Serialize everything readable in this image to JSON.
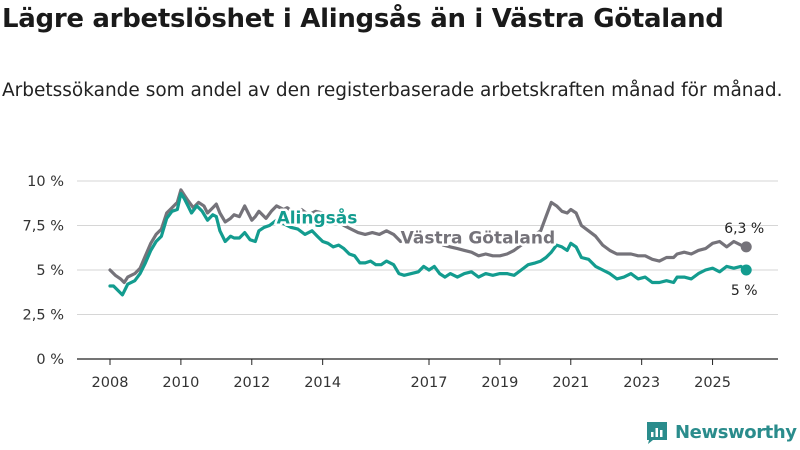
{
  "title": "Lägre arbetslöshet i Alingsås än i Västra Götaland",
  "subtitle": "Arbetssökande som andel av den registerbaserade arbetskraften månad för månad.",
  "brand": {
    "name": "Newsworthy",
    "icon": "bar-chart-logo-icon"
  },
  "colors": {
    "alingsas": "#139c8f",
    "vastra": "#75737a",
    "grid": "#d6d6d6",
    "axis": "#222222"
  },
  "chart_data": {
    "type": "line",
    "title": "Lägre arbetslöshet i Alingsås än i Västra Götaland",
    "xlabel": "",
    "ylabel": "",
    "xlim": [
      2008,
      2026
    ],
    "ylim": [
      0,
      10
    ],
    "grid": true,
    "y_ticks": [
      {
        "value": 0,
        "label": "0 %"
      },
      {
        "value": 2.5,
        "label": "2,5 %"
      },
      {
        "value": 5,
        "label": "5 %"
      },
      {
        "value": 7.5,
        "label": "7,5 %"
      },
      {
        "value": 10,
        "label": "10 %"
      }
    ],
    "x_ticks": [
      {
        "value": 2008,
        "label": "2008"
      },
      {
        "value": 2010,
        "label": "2010"
      },
      {
        "value": 2012,
        "label": "2012"
      },
      {
        "value": 2014,
        "label": "2014"
      },
      {
        "value": 2017,
        "label": "2017"
      },
      {
        "value": 2019,
        "label": "2019"
      },
      {
        "value": 2021,
        "label": "2021"
      },
      {
        "value": 2023,
        "label": "2023"
      },
      {
        "value": 2025,
        "label": "2025"
      }
    ],
    "series": [
      {
        "name": "Västra Götaland",
        "color": "#75737a",
        "end_label": "6,3 %",
        "points": [
          [
            2008.0,
            5.0
          ],
          [
            2008.15,
            4.7
          ],
          [
            2008.3,
            4.5
          ],
          [
            2008.4,
            4.3
          ],
          [
            2008.5,
            4.6
          ],
          [
            2008.7,
            4.8
          ],
          [
            2008.85,
            5.1
          ],
          [
            2009.0,
            5.8
          ],
          [
            2009.15,
            6.5
          ],
          [
            2009.3,
            7.0
          ],
          [
            2009.45,
            7.3
          ],
          [
            2009.6,
            8.2
          ],
          [
            2009.75,
            8.5
          ],
          [
            2009.9,
            8.8
          ],
          [
            2010.0,
            9.5
          ],
          [
            2010.1,
            9.2
          ],
          [
            2010.2,
            8.9
          ],
          [
            2010.35,
            8.5
          ],
          [
            2010.5,
            8.8
          ],
          [
            2010.65,
            8.6
          ],
          [
            2010.75,
            8.2
          ],
          [
            2010.9,
            8.5
          ],
          [
            2011.0,
            8.7
          ],
          [
            2011.1,
            8.2
          ],
          [
            2011.25,
            7.7
          ],
          [
            2011.4,
            7.9
          ],
          [
            2011.5,
            8.1
          ],
          [
            2011.65,
            8.0
          ],
          [
            2011.8,
            8.6
          ],
          [
            2011.9,
            8.2
          ],
          [
            2012.0,
            7.8
          ],
          [
            2012.1,
            8.0
          ],
          [
            2012.2,
            8.3
          ],
          [
            2012.4,
            7.9
          ],
          [
            2012.55,
            8.3
          ],
          [
            2012.7,
            8.6
          ],
          [
            2012.9,
            8.4
          ],
          [
            2013.0,
            8.5
          ],
          [
            2013.2,
            8.2
          ],
          [
            2013.4,
            8.4
          ],
          [
            2013.6,
            8.1
          ],
          [
            2013.8,
            8.3
          ],
          [
            2014.0,
            8.2
          ],
          [
            2014.2,
            8.0
          ],
          [
            2014.4,
            7.8
          ],
          [
            2014.6,
            7.5
          ],
          [
            2014.8,
            7.3
          ],
          [
            2015.0,
            7.1
          ],
          [
            2015.2,
            7.0
          ],
          [
            2015.4,
            7.1
          ],
          [
            2015.6,
            7.0
          ],
          [
            2015.8,
            7.2
          ],
          [
            2016.0,
            7.0
          ],
          [
            2016.2,
            6.6
          ],
          [
            2016.4,
            6.8
          ],
          [
            2016.6,
            6.7
          ],
          [
            2016.8,
            6.9
          ],
          [
            2017.0,
            6.9
          ],
          [
            2017.2,
            6.7
          ],
          [
            2017.4,
            6.4
          ],
          [
            2017.6,
            6.3
          ],
          [
            2017.8,
            6.2
          ],
          [
            2018.0,
            6.1
          ],
          [
            2018.2,
            6.0
          ],
          [
            2018.4,
            5.8
          ],
          [
            2018.6,
            5.9
          ],
          [
            2018.8,
            5.8
          ],
          [
            2019.0,
            5.8
          ],
          [
            2019.2,
            5.9
          ],
          [
            2019.4,
            6.1
          ],
          [
            2019.6,
            6.4
          ],
          [
            2019.8,
            6.8
          ],
          [
            2020.0,
            7.0
          ],
          [
            2020.15,
            7.2
          ],
          [
            2020.3,
            8.0
          ],
          [
            2020.45,
            8.8
          ],
          [
            2020.6,
            8.6
          ],
          [
            2020.75,
            8.3
          ],
          [
            2020.9,
            8.2
          ],
          [
            2021.0,
            8.4
          ],
          [
            2021.15,
            8.2
          ],
          [
            2021.3,
            7.5
          ],
          [
            2021.5,
            7.2
          ],
          [
            2021.7,
            6.9
          ],
          [
            2021.9,
            6.4
          ],
          [
            2022.1,
            6.1
          ],
          [
            2022.3,
            5.9
          ],
          [
            2022.5,
            5.9
          ],
          [
            2022.7,
            5.9
          ],
          [
            2022.9,
            5.8
          ],
          [
            2023.1,
            5.8
          ],
          [
            2023.3,
            5.6
          ],
          [
            2023.5,
            5.5
          ],
          [
            2023.7,
            5.7
          ],
          [
            2023.9,
            5.7
          ],
          [
            2024.0,
            5.9
          ],
          [
            2024.2,
            6.0
          ],
          [
            2024.4,
            5.9
          ],
          [
            2024.6,
            6.1
          ],
          [
            2024.8,
            6.2
          ],
          [
            2025.0,
            6.5
          ],
          [
            2025.2,
            6.6
          ],
          [
            2025.4,
            6.3
          ],
          [
            2025.6,
            6.6
          ],
          [
            2025.8,
            6.4
          ],
          [
            2025.95,
            6.3
          ]
        ]
      },
      {
        "name": "Alingsås",
        "color": "#139c8f",
        "end_label": "5 %",
        "points": [
          [
            2008.0,
            4.1
          ],
          [
            2008.1,
            4.1
          ],
          [
            2008.25,
            3.8
          ],
          [
            2008.35,
            3.6
          ],
          [
            2008.5,
            4.2
          ],
          [
            2008.7,
            4.4
          ],
          [
            2008.85,
            4.8
          ],
          [
            2009.0,
            5.4
          ],
          [
            2009.15,
            6.1
          ],
          [
            2009.3,
            6.6
          ],
          [
            2009.45,
            6.9
          ],
          [
            2009.6,
            7.9
          ],
          [
            2009.75,
            8.3
          ],
          [
            2009.9,
            8.4
          ],
          [
            2010.0,
            9.3
          ],
          [
            2010.1,
            9.0
          ],
          [
            2010.2,
            8.6
          ],
          [
            2010.3,
            8.2
          ],
          [
            2010.45,
            8.6
          ],
          [
            2010.6,
            8.3
          ],
          [
            2010.75,
            7.8
          ],
          [
            2010.9,
            8.1
          ],
          [
            2011.0,
            8.0
          ],
          [
            2011.1,
            7.2
          ],
          [
            2011.25,
            6.6
          ],
          [
            2011.4,
            6.9
          ],
          [
            2011.5,
            6.8
          ],
          [
            2011.65,
            6.8
          ],
          [
            2011.8,
            7.1
          ],
          [
            2011.95,
            6.7
          ],
          [
            2012.1,
            6.6
          ],
          [
            2012.2,
            7.2
          ],
          [
            2012.35,
            7.4
          ],
          [
            2012.5,
            7.5
          ],
          [
            2012.7,
            7.8
          ],
          [
            2012.9,
            7.6
          ],
          [
            2013.1,
            7.4
          ],
          [
            2013.3,
            7.3
          ],
          [
            2013.5,
            7.0
          ],
          [
            2013.7,
            7.2
          ],
          [
            2013.85,
            6.9
          ],
          [
            2014.0,
            6.6
          ],
          [
            2014.15,
            6.5
          ],
          [
            2014.3,
            6.3
          ],
          [
            2014.45,
            6.4
          ],
          [
            2014.6,
            6.2
          ],
          [
            2014.75,
            5.9
          ],
          [
            2014.9,
            5.8
          ],
          [
            2015.05,
            5.4
          ],
          [
            2015.2,
            5.4
          ],
          [
            2015.35,
            5.5
          ],
          [
            2015.5,
            5.3
          ],
          [
            2015.65,
            5.3
          ],
          [
            2015.8,
            5.5
          ],
          [
            2016.0,
            5.3
          ],
          [
            2016.15,
            4.8
          ],
          [
            2016.3,
            4.7
          ],
          [
            2016.5,
            4.8
          ],
          [
            2016.7,
            4.9
          ],
          [
            2016.85,
            5.2
          ],
          [
            2017.0,
            5.0
          ],
          [
            2017.15,
            5.2
          ],
          [
            2017.3,
            4.8
          ],
          [
            2017.45,
            4.6
          ],
          [
            2017.6,
            4.8
          ],
          [
            2017.8,
            4.6
          ],
          [
            2018.0,
            4.8
          ],
          [
            2018.2,
            4.9
          ],
          [
            2018.4,
            4.6
          ],
          [
            2018.6,
            4.8
          ],
          [
            2018.8,
            4.7
          ],
          [
            2019.0,
            4.8
          ],
          [
            2019.2,
            4.8
          ],
          [
            2019.4,
            4.7
          ],
          [
            2019.6,
            5.0
          ],
          [
            2019.8,
            5.3
          ],
          [
            2020.0,
            5.4
          ],
          [
            2020.15,
            5.5
          ],
          [
            2020.3,
            5.7
          ],
          [
            2020.45,
            6.0
          ],
          [
            2020.6,
            6.4
          ],
          [
            2020.75,
            6.3
          ],
          [
            2020.9,
            6.1
          ],
          [
            2021.0,
            6.5
          ],
          [
            2021.15,
            6.3
          ],
          [
            2021.3,
            5.7
          ],
          [
            2021.5,
            5.6
          ],
          [
            2021.7,
            5.2
          ],
          [
            2021.9,
            5.0
          ],
          [
            2022.1,
            4.8
          ],
          [
            2022.3,
            4.5
          ],
          [
            2022.5,
            4.6
          ],
          [
            2022.7,
            4.8
          ],
          [
            2022.9,
            4.5
          ],
          [
            2023.1,
            4.6
          ],
          [
            2023.3,
            4.3
          ],
          [
            2023.5,
            4.3
          ],
          [
            2023.7,
            4.4
          ],
          [
            2023.9,
            4.3
          ],
          [
            2024.0,
            4.6
          ],
          [
            2024.2,
            4.6
          ],
          [
            2024.4,
            4.5
          ],
          [
            2024.6,
            4.8
          ],
          [
            2024.8,
            5.0
          ],
          [
            2025.0,
            5.1
          ],
          [
            2025.2,
            4.9
          ],
          [
            2025.4,
            5.2
          ],
          [
            2025.6,
            5.1
          ],
          [
            2025.8,
            5.2
          ],
          [
            2025.95,
            5.0
          ]
        ]
      }
    ],
    "annotations": [
      {
        "text": "Alingsås",
        "series": "Alingsås",
        "x": 2012.7,
        "y": 7.6
      },
      {
        "text": "Västra Götaland",
        "series": "Västra Götaland",
        "x": 2016.2,
        "y": 6.5
      }
    ]
  }
}
